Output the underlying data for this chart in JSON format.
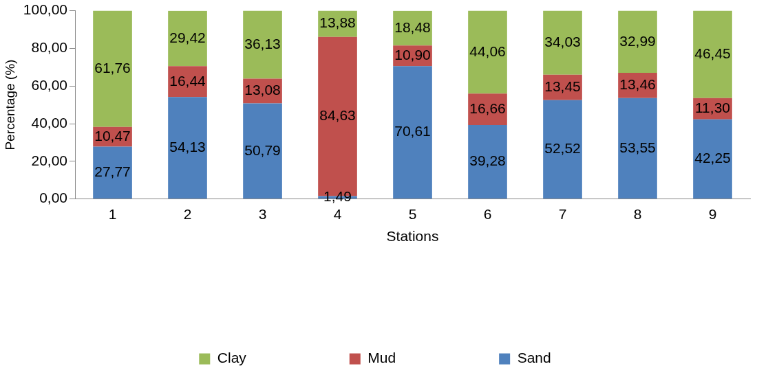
{
  "chart_data": {
    "type": "bar",
    "stacked": true,
    "xlabel": "Stations",
    "ylabel": "Percentage (%)",
    "categories": [
      "1",
      "2",
      "3",
      "4",
      "5",
      "6",
      "7",
      "8",
      "9"
    ],
    "series": [
      {
        "name": "Sand",
        "color": "#4f81bd",
        "values": [
          27.77,
          54.13,
          50.79,
          1.49,
          70.61,
          39.28,
          52.52,
          53.55,
          42.25
        ],
        "value_labels": [
          "27,77",
          "54,13",
          "50,79",
          "1,49",
          "70,61",
          "39,28",
          "52,52",
          "53,55",
          "42,25"
        ]
      },
      {
        "name": "Mud",
        "color": "#c0504d",
        "values": [
          10.47,
          16.44,
          13.08,
          84.63,
          10.9,
          16.66,
          13.45,
          13.46,
          11.3
        ],
        "value_labels": [
          "10,47",
          "16,44",
          "13,08",
          "84,63",
          "10,90",
          "16,66",
          "13,45",
          "13,46",
          "11,30"
        ]
      },
      {
        "name": "Clay",
        "color": "#9bbb59",
        "values": [
          61.76,
          29.42,
          36.13,
          13.88,
          18.48,
          44.06,
          34.03,
          32.99,
          46.45
        ],
        "value_labels": [
          "61,76",
          "29,42",
          "36,13",
          "13,88",
          "18,48",
          "44,06",
          "34,03",
          "32,99",
          "46,45"
        ]
      }
    ],
    "ylim": [
      0,
      100
    ],
    "yticks": [
      {
        "value": 0,
        "label": "0,00"
      },
      {
        "value": 20,
        "label": "20,00"
      },
      {
        "value": 40,
        "label": "40,00"
      },
      {
        "value": 60,
        "label": "60,00"
      },
      {
        "value": 80,
        "label": "80,00"
      },
      {
        "value": 100,
        "label": "100,00"
      }
    ],
    "grid": false,
    "legend": "bottom"
  }
}
